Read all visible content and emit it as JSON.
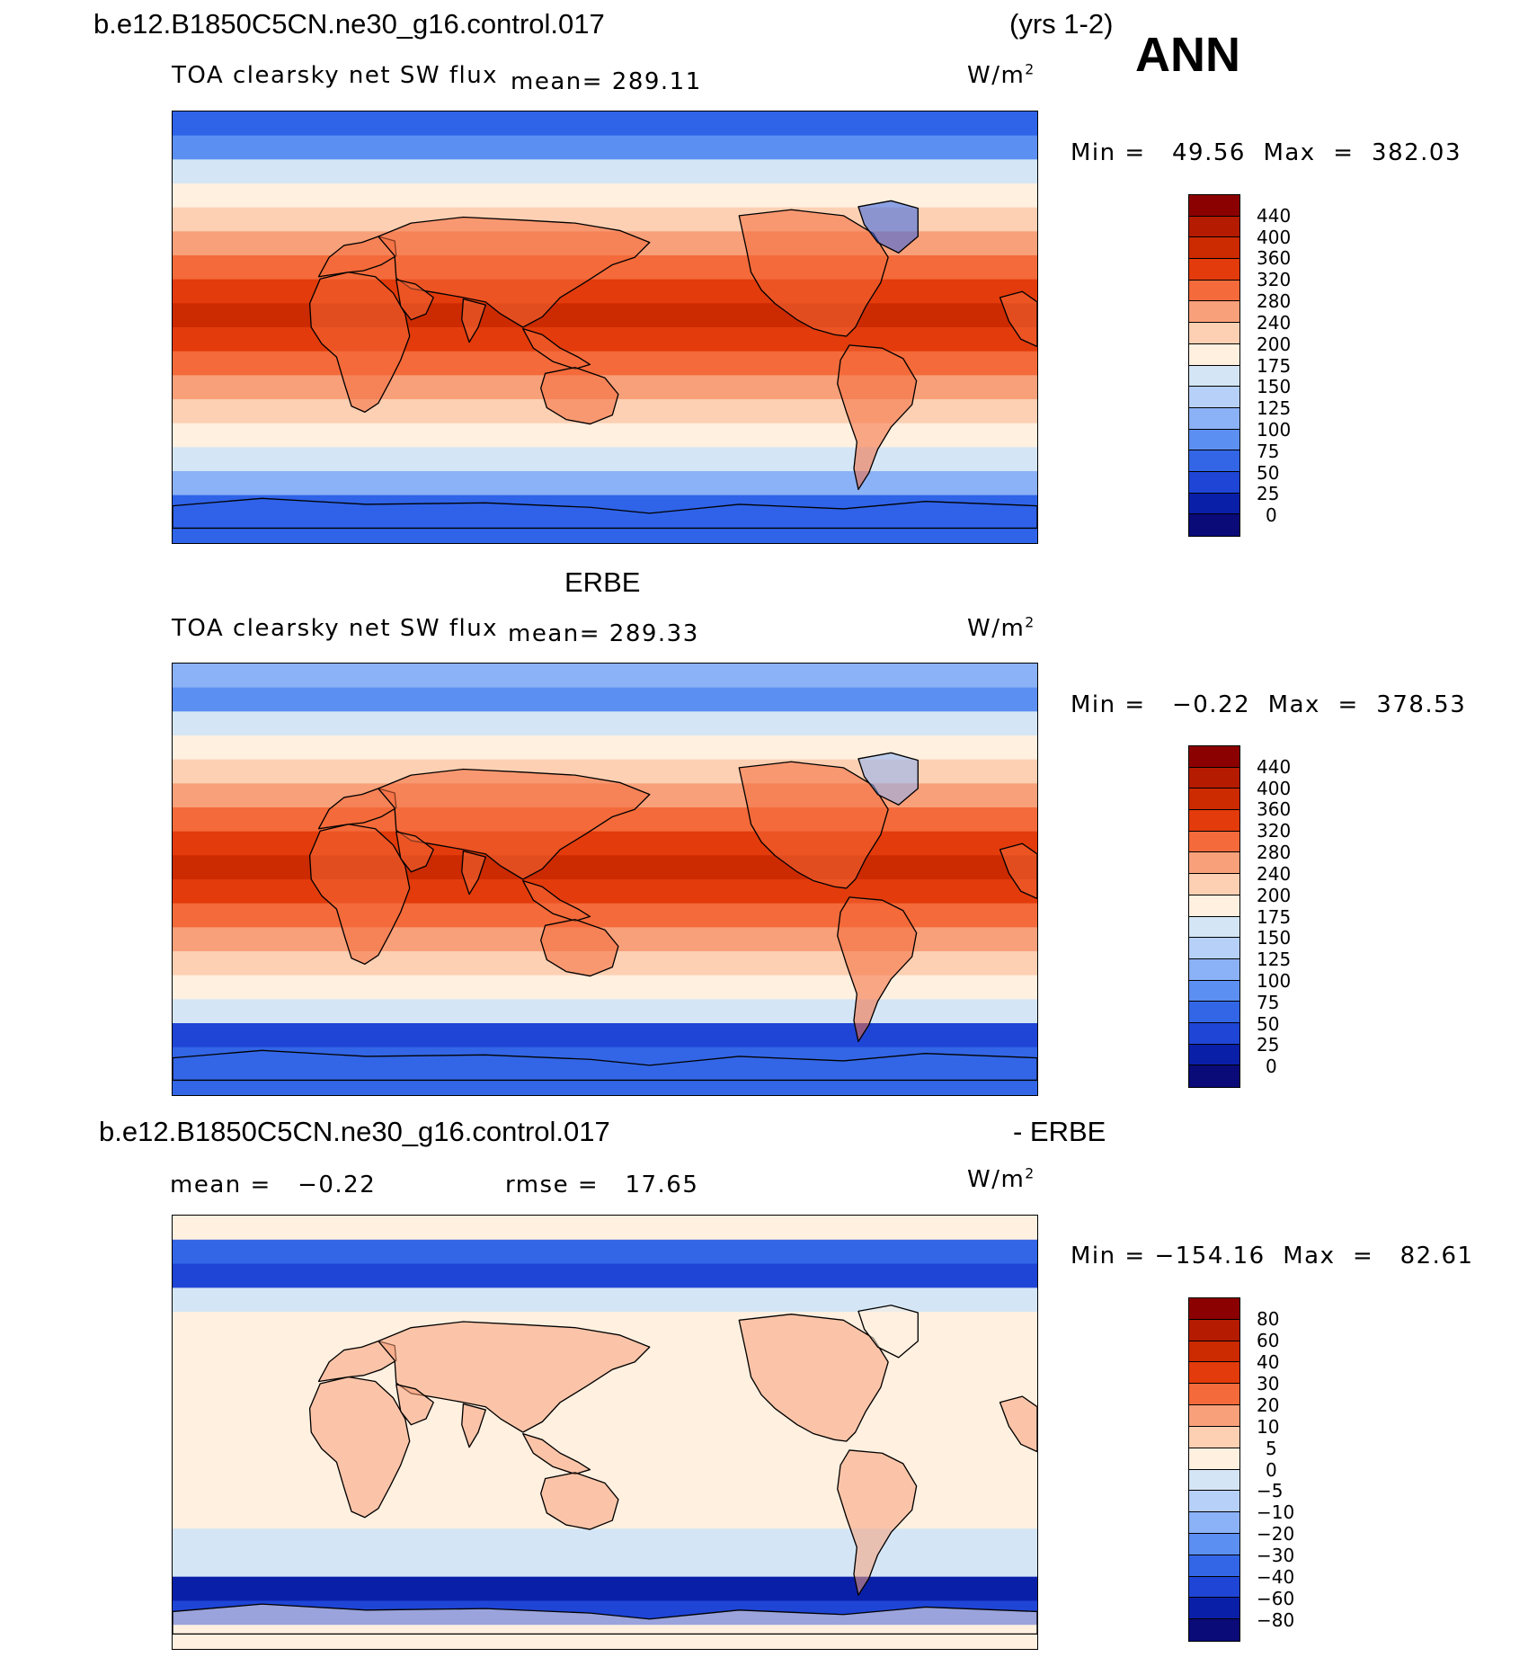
{
  "header": {
    "case_name": "b.e12.B1850C5CN.ne30_g16.control.017",
    "years": "(yrs 1-2)",
    "season": "ANN"
  },
  "panels": [
    {
      "id": "model",
      "variable": "TOA clearsky net SW flux",
      "mean_text": "mean= 289.11",
      "units": "W/m",
      "units_sup": "2",
      "minmax_text": "Min =   49.56  Max  =  382.03",
      "palette": "flux"
    },
    {
      "id": "obs",
      "title": "ERBE",
      "variable": "TOA clearsky net SW flux",
      "mean_text": "mean= 289.33",
      "units": "W/m",
      "units_sup": "2",
      "minmax_text": "Min =   −0.22  Max  =  378.53",
      "palette": "flux"
    },
    {
      "id": "diff",
      "title_left": "b.e12.B1850C5CN.ne30_g16.control.017",
      "title_right": "- ERBE",
      "mean_text": "mean =   −0.22",
      "rmse_text": "rmse =   17.65",
      "units": "W/m",
      "units_sup": "2",
      "minmax_text": "Min = −154.16  Max  =   82.61",
      "palette": "diff"
    }
  ],
  "colorbars": {
    "flux": {
      "levels": [
        "440",
        "400",
        "360",
        "320",
        "280",
        "240",
        "200",
        "175",
        "150",
        "125",
        "100",
        "75",
        "50",
        "25",
        "0"
      ],
      "colors": [
        "#8b0000",
        "#b41b00",
        "#cc2a00",
        "#e33b0b",
        "#f46a3a",
        "#f8a07a",
        "#fdd0b3",
        "#fff0e0",
        "#d4e6f6",
        "#b6d0f7",
        "#8bb1f6",
        "#5c8ff2",
        "#3366e6",
        "#1f45d6",
        "#0a1fa8",
        "#0a0a78"
      ]
    },
    "diff": {
      "levels": [
        "80",
        "60",
        "40",
        "30",
        "20",
        "10",
        "5",
        "0",
        "−5",
        "−10",
        "−20",
        "−30",
        "−40",
        "−60",
        "−80"
      ],
      "colors": [
        "#8b0000",
        "#b41b00",
        "#cc2a00",
        "#e33b0b",
        "#f46a3a",
        "#f8a07a",
        "#fdd0b3",
        "#fff0e0",
        "#d4e6f6",
        "#b6d0f7",
        "#8bb1f6",
        "#5c8ff2",
        "#3366e6",
        "#1f45d6",
        "#0a1fa8",
        "#0a0a78"
      ]
    }
  },
  "map_fields": {
    "model": {
      "band_colors": [
        "#2f63e8",
        "#5c8ff2",
        "#d4e6f6",
        "#fff0e0",
        "#fdd0b3",
        "#f8a07a",
        "#f46a3a",
        "#e33b0b",
        "#cc2a00",
        "#e33b0b",
        "#f46a3a",
        "#f8a07a",
        "#fdd0b3",
        "#fff0e0",
        "#d4e6f6",
        "#8bb1f6",
        "#2f63e8",
        "#2f63e8"
      ],
      "land_color": "#f46a3a"
    },
    "obs": {
      "band_colors": [
        "#8bb1f6",
        "#5c8ff2",
        "#d4e6f6",
        "#fff0e0",
        "#fdd0b3",
        "#f8a07a",
        "#f46a3a",
        "#e33b0b",
        "#cc2a00",
        "#e33b0b",
        "#f46a3a",
        "#f8a07a",
        "#fdd0b3",
        "#fff0e0",
        "#d4e6f6",
        "#1f45d6",
        "#3366e6",
        "#3366e6"
      ],
      "land_color": "#f46a3a"
    },
    "diff": {
      "band_colors": [
        "#fff0e0",
        "#3366e6",
        "#1f45d6",
        "#d4e6f6",
        "#fff0e0",
        "#fff0e0",
        "#fff0e0",
        "#fff0e0",
        "#fff0e0",
        "#fff0e0",
        "#fff0e0",
        "#fff0e0",
        "#fff0e0",
        "#d4e6f6",
        "#d4e6f6",
        "#0a1fa8",
        "#1f45d6",
        "#fff0e0"
      ],
      "land_color": "#f8a07a"
    }
  }
}
